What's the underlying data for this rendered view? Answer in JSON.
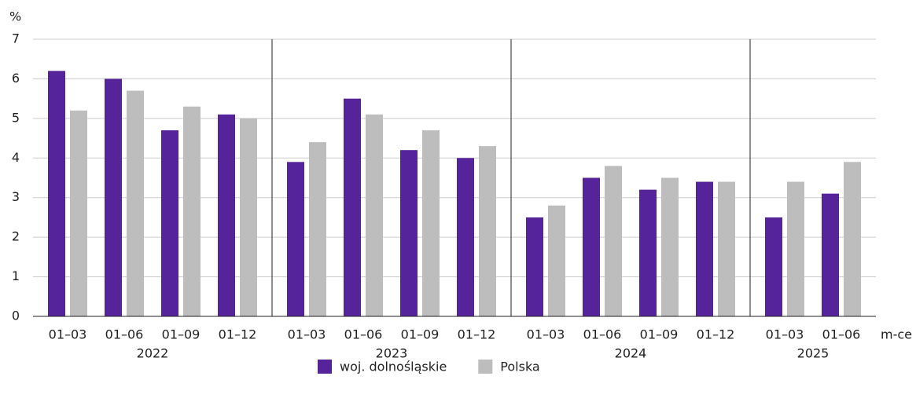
{
  "chart_data": {
    "type": "bar",
    "y_label": "%",
    "x_label": "m-ce",
    "groups": [
      {
        "name": "2022",
        "categories": [
          "01–03",
          "01–06",
          "01–09",
          "01–12"
        ]
      },
      {
        "name": "2023",
        "categories": [
          "01–03",
          "01–06",
          "01–09",
          "01–12"
        ]
      },
      {
        "name": "2024",
        "categories": [
          "01–03",
          "01–06",
          "01–09",
          "01–12"
        ]
      },
      {
        "name": "2025",
        "categories": [
          "01–03",
          "01–06"
        ]
      }
    ],
    "series": [
      {
        "name": "woj. dolnośląskie",
        "color": "#55239a",
        "values": [
          6.2,
          6.0,
          4.7,
          5.1,
          3.9,
          5.5,
          4.2,
          4.0,
          2.5,
          3.5,
          3.2,
          3.4,
          2.5,
          3.1
        ]
      },
      {
        "name": "Polska",
        "color": "#bdbdbd",
        "values": [
          5.2,
          5.7,
          5.3,
          5.0,
          4.4,
          5.1,
          4.7,
          4.3,
          2.8,
          3.8,
          3.5,
          3.4,
          3.4,
          3.9
        ]
      }
    ],
    "ylim": [
      0,
      7
    ],
    "yticks": [
      0,
      1,
      2,
      3,
      4,
      5,
      6,
      7
    ],
    "grid": true
  }
}
